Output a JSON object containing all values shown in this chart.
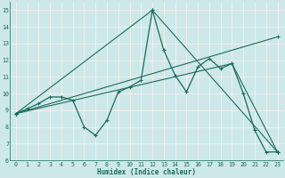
{
  "title": "",
  "xlabel": "Humidex (Indice chaleur)",
  "ylabel": "",
  "background_color": "#cde8e8",
  "grid_color": "#d8b8b8",
  "grid_color2": "#ffffff",
  "line_color": "#1a6b5a",
  "xlim": [
    -0.5,
    23.5
  ],
  "ylim": [
    6,
    15.5
  ],
  "yticks": [
    6,
    7,
    8,
    9,
    10,
    11,
    12,
    13,
    14,
    15
  ],
  "xticks": [
    0,
    1,
    2,
    3,
    4,
    5,
    6,
    7,
    8,
    9,
    10,
    11,
    12,
    13,
    14,
    15,
    16,
    17,
    18,
    19,
    20,
    21,
    22,
    23
  ],
  "line1_x": [
    0,
    1,
    2,
    3,
    4,
    5,
    6,
    7,
    8,
    9,
    10,
    11,
    12,
    13,
    14,
    15,
    16,
    17,
    18,
    19,
    20,
    21,
    22,
    23
  ],
  "line1_y": [
    8.8,
    9.1,
    9.4,
    9.8,
    9.8,
    9.6,
    8.0,
    7.5,
    8.4,
    10.1,
    10.4,
    10.8,
    15.0,
    12.6,
    11.1,
    10.1,
    11.6,
    12.1,
    11.5,
    11.8,
    10.0,
    7.8,
    6.5,
    6.5
  ],
  "line2_x": [
    0,
    12,
    23
  ],
  "line2_y": [
    8.8,
    15.0,
    6.5
  ],
  "line3_x": [
    0,
    19,
    23
  ],
  "line3_y": [
    8.8,
    11.8,
    6.5
  ],
  "line4_x": [
    0,
    23
  ],
  "line4_y": [
    8.8,
    13.4
  ]
}
